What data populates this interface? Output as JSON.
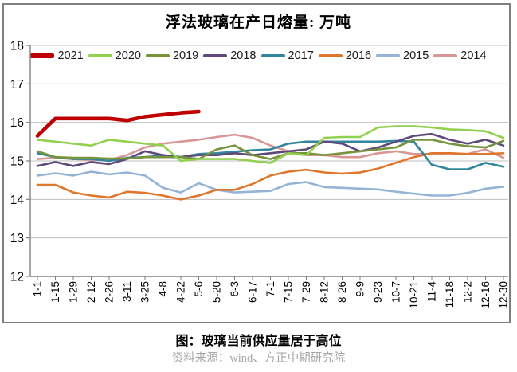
{
  "title": "浮法玻璃在产日熔量: 万吨",
  "caption": "图：玻璃当前供应量居于高位",
  "source": "资料来源：wind、方正中期研究院",
  "chart_data": {
    "type": "line",
    "title": "浮法玻璃在产日熔量: 万吨",
    "unit": "万吨",
    "grid": true,
    "legend_position": "top",
    "grid_color": "#bfbfbf",
    "axis_color": "#808080",
    "tick_label_color": "#000000",
    "ylim": [
      12,
      18
    ],
    "y_ticks": [
      18,
      17,
      16,
      15,
      14,
      13,
      12
    ],
    "x_labels": [
      "1-1",
      "1-15",
      "1-29",
      "2-12",
      "2-26",
      "3-11",
      "3-25",
      "4-8",
      "4-22",
      "5-6",
      "5-20",
      "6-3",
      "6-17",
      "7-1",
      "7-15",
      "7-29",
      "8-12",
      "8-26",
      "9-9",
      "9-23",
      "10-7",
      "10-21",
      "11-4",
      "11-18",
      "12-2",
      "12-16",
      "12-30"
    ],
    "series": [
      {
        "name": "2021",
        "color": "#c00000",
        "width": 4.6,
        "values": [
          15.65,
          16.1,
          16.1,
          16.1,
          16.1,
          16.05,
          16.15,
          16.2,
          16.25,
          16.28,
          null,
          null,
          null,
          null,
          null,
          null,
          null,
          null,
          null,
          null,
          null,
          null,
          null,
          null,
          null,
          null,
          null
        ]
      },
      {
        "name": "2020",
        "color": "#92d050",
        "width": 2.6,
        "values": [
          15.55,
          15.5,
          15.45,
          15.4,
          15.55,
          15.5,
          15.45,
          15.4,
          15.0,
          15.05,
          15.05,
          15.05,
          15.0,
          14.95,
          15.2,
          15.15,
          15.6,
          15.62,
          15.62,
          15.87,
          15.9,
          15.9,
          15.87,
          15.82,
          15.8,
          15.77,
          15.6
        ]
      },
      {
        "name": "2019",
        "color": "#77933c",
        "width": 2.6,
        "values": [
          15.25,
          15.1,
          15.08,
          15.08,
          15.06,
          15.06,
          15.1,
          15.1,
          15.1,
          15.05,
          15.3,
          15.4,
          15.15,
          15.05,
          15.2,
          15.2,
          15.15,
          15.2,
          15.25,
          15.3,
          15.35,
          15.55,
          15.55,
          15.45,
          15.38,
          15.35,
          15.52
        ]
      },
      {
        "name": "2018",
        "color": "#5f497a",
        "width": 2.6,
        "values": [
          14.87,
          14.97,
          14.87,
          14.97,
          14.92,
          15.05,
          15.25,
          15.15,
          15.1,
          15.15,
          15.15,
          15.2,
          15.15,
          15.2,
          15.25,
          15.3,
          15.5,
          15.45,
          15.25,
          15.35,
          15.5,
          15.65,
          15.7,
          15.55,
          15.45,
          15.55,
          15.4
        ]
      },
      {
        "name": "2017",
        "color": "#31859c",
        "width": 2.6,
        "values": [
          15.2,
          15.1,
          15.05,
          15.05,
          15.0,
          15.08,
          15.1,
          15.14,
          15.1,
          15.18,
          15.2,
          15.24,
          15.28,
          15.3,
          15.45,
          15.5,
          15.5,
          15.5,
          15.5,
          15.5,
          15.52,
          15.5,
          14.9,
          14.78,
          14.78,
          14.95,
          14.85
        ]
      },
      {
        "name": "2016",
        "color": "#e0762c",
        "width": 2.6,
        "values": [
          14.38,
          14.38,
          14.18,
          14.1,
          14.05,
          14.2,
          14.17,
          14.1,
          14.0,
          14.1,
          14.25,
          14.25,
          14.4,
          14.62,
          14.72,
          14.77,
          14.7,
          14.67,
          14.7,
          14.8,
          14.95,
          15.1,
          15.2,
          15.2,
          15.18,
          15.18,
          15.2
        ]
      },
      {
        "name": "2015",
        "color": "#95b3d7",
        "width": 2.6,
        "values": [
          14.62,
          14.68,
          14.62,
          14.72,
          14.65,
          14.7,
          14.62,
          14.3,
          14.18,
          14.42,
          14.25,
          14.18,
          14.2,
          14.22,
          14.4,
          14.45,
          14.32,
          14.3,
          14.28,
          14.26,
          14.2,
          14.15,
          14.1,
          14.1,
          14.17,
          14.28,
          14.33
        ]
      },
      {
        "name": "2014",
        "color": "#d99694",
        "width": 2.6,
        "values": [
          15.05,
          15.08,
          15.05,
          15.03,
          15.02,
          15.15,
          15.35,
          15.45,
          15.5,
          15.55,
          15.62,
          15.68,
          15.6,
          15.4,
          15.25,
          15.15,
          15.15,
          15.1,
          15.1,
          15.2,
          15.25,
          15.18,
          15.18,
          15.2,
          15.18,
          15.3,
          15.08
        ]
      }
    ]
  }
}
